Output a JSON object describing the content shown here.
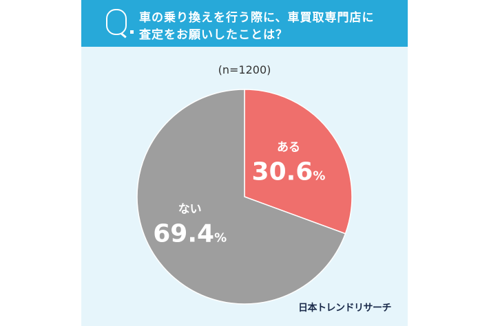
{
  "header": {
    "line1": "車の乗り換えを行う際に、車買取専門店に",
    "line2": "査定をお願いしたことは？"
  },
  "brand": "日本トレンドリサーチ",
  "chart_data": {
    "type": "pie",
    "title": "車の乗り換えを行う際に、車買取専門店に査定をお願いしたことは？",
    "subtitle": "(n=1200)",
    "slices": [
      {
        "label": "ある",
        "value": 30.6,
        "display": "30.6",
        "color": "#ef6f6c"
      },
      {
        "label": "ない",
        "value": 69.4,
        "display": "69.4",
        "color": "#9e9e9e"
      }
    ],
    "unit": "%",
    "start_angle_deg": 0,
    "direction": "clockwise"
  }
}
